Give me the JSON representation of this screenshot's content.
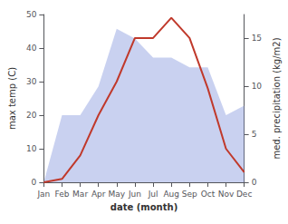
{
  "chart_data": {
    "type": "line",
    "categories": [
      "Jan",
      "Feb",
      "Mar",
      "Apr",
      "May",
      "Jun",
      "Jul",
      "Aug",
      "Sep",
      "Oct",
      "Nov",
      "Dec"
    ],
    "xlabel": "date (month)",
    "ylabel": "max temp (C)",
    "y2label": "med. precipitation (kg/m2)",
    "series": [
      {
        "type": "area",
        "color": "#8899dd",
        "axis": "y2",
        "values": [
          0,
          7,
          7,
          10,
          16,
          15,
          13,
          13,
          12,
          12,
          7,
          8
        ]
      },
      {
        "type": "line",
        "color": "#c0392b",
        "values": [
          0,
          1,
          8,
          20,
          30,
          43,
          43,
          49,
          43,
          28,
          10,
          3
        ]
      }
    ],
    "ylim": [
      0,
      50
    ],
    "yticks": [
      0,
      10,
      20,
      30,
      40,
      50
    ],
    "y2lim": [
      0,
      17.5
    ],
    "y2ticks": [
      0,
      5,
      10,
      15
    ],
    "grid": false
  }
}
